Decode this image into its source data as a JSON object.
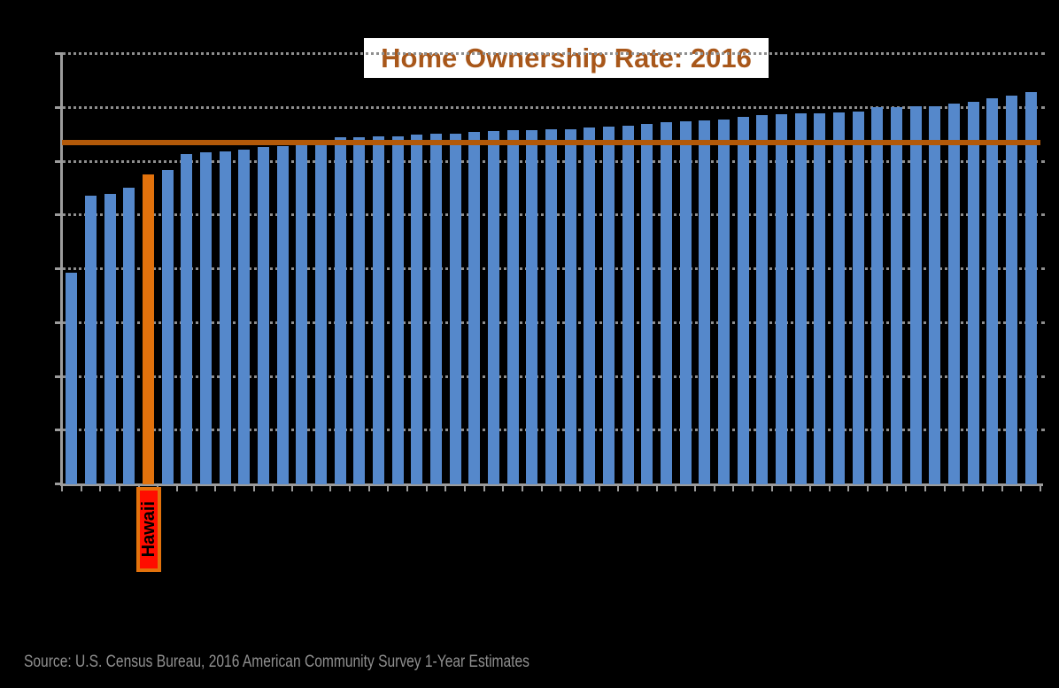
{
  "title": {
    "text": "Home Ownership Rate: 2016"
  },
  "source_note": "Source: U.S. Census Bureau, 2016 American Community Survey 1-Year Estimates",
  "chart_data": {
    "type": "bar",
    "title": "Home Ownership Rate: 2016",
    "xlabel": "",
    "ylabel": "",
    "unit": "percent",
    "ylim": [
      0,
      80
    ],
    "ytick_interval": 10,
    "grid": true,
    "axis_tick_labels_visible": false,
    "legend": "none",
    "bars_sorted": "ascending",
    "values": [
      39.2,
      53.5,
      53.8,
      55.0,
      57.5,
      58.2,
      61.2,
      61.6,
      61.8,
      62.0,
      62.5,
      62.7,
      62.8,
      62.9,
      64.4,
      64.4,
      64.5,
      64.6,
      64.9,
      65.0,
      65.1,
      65.3,
      65.5,
      65.6,
      65.7,
      65.8,
      65.9,
      66.2,
      66.4,
      66.5,
      66.9,
      67.1,
      67.4,
      67.5,
      67.7,
      68.2,
      68.4,
      68.7,
      68.8,
      68.8,
      68.9,
      69.2,
      70.0,
      70.0,
      70.1,
      70.2,
      70.6,
      71.0,
      71.6,
      72.1,
      72.8
    ],
    "highlighted_bar": {
      "index": 4,
      "label": "Hawaii",
      "value": 57.5
    },
    "reference_line": {
      "value": 63.4
    }
  },
  "colors": {
    "background": "#000000",
    "bar": "#5588CB",
    "highlight_bar": "#E2720C",
    "reference_line": "#B25909",
    "title_text": "#A8571A",
    "title_background": "#FFFFFF",
    "axis": "#9C9C9C",
    "gridline": "#8E8E8E",
    "callout_fill": "#FF0D00",
    "callout_border": "#E2720C",
    "callout_text": "#000000",
    "source_text": "#909090"
  }
}
